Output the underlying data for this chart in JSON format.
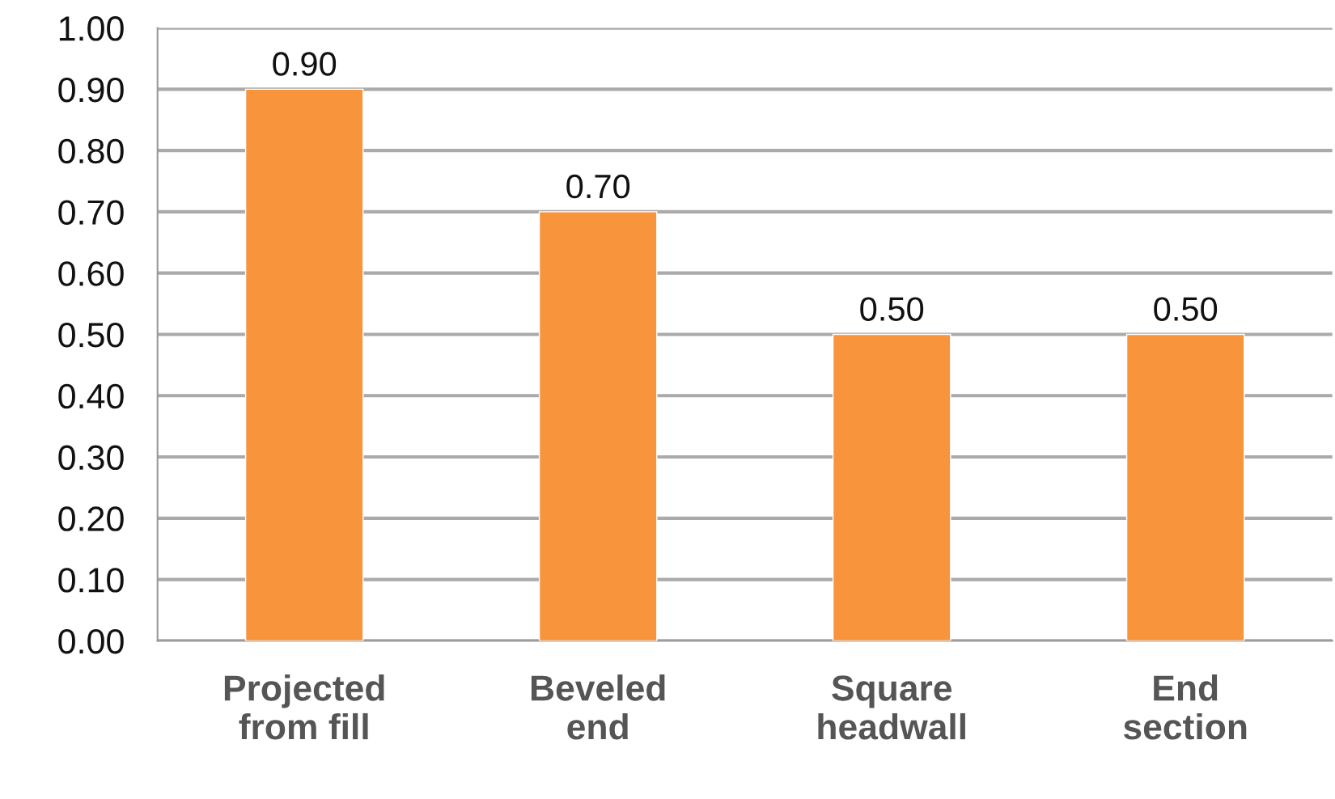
{
  "chart_data": {
    "type": "bar",
    "categories": [
      "Projected\nfrom fill",
      "Beveled\nend",
      "Square\nheadwall",
      "End\nsection"
    ],
    "values": [
      0.9,
      0.7,
      0.5,
      0.5
    ],
    "value_labels": [
      "0.90",
      "0.70",
      "0.50",
      "0.50"
    ],
    "color": "#f7943c",
    "ylim": [
      0,
      1.0
    ],
    "yticks": [
      {
        "value": 0,
        "label": "0.00"
      },
      {
        "value": 0.1,
        "label": "0.10"
      },
      {
        "value": 0.2,
        "label": "0.20"
      },
      {
        "value": 0.3,
        "label": "0.30"
      },
      {
        "value": 0.4,
        "label": "0.40"
      },
      {
        "value": 0.5,
        "label": "0.50"
      },
      {
        "value": 0.6,
        "label": "0.60"
      },
      {
        "value": 0.7,
        "label": "0.70"
      },
      {
        "value": 0.8,
        "label": "0.80"
      },
      {
        "value": 0.9,
        "label": "0.90"
      },
      {
        "value": 1.0,
        "label": "1.00"
      }
    ],
    "grid": "y",
    "legend": false
  }
}
